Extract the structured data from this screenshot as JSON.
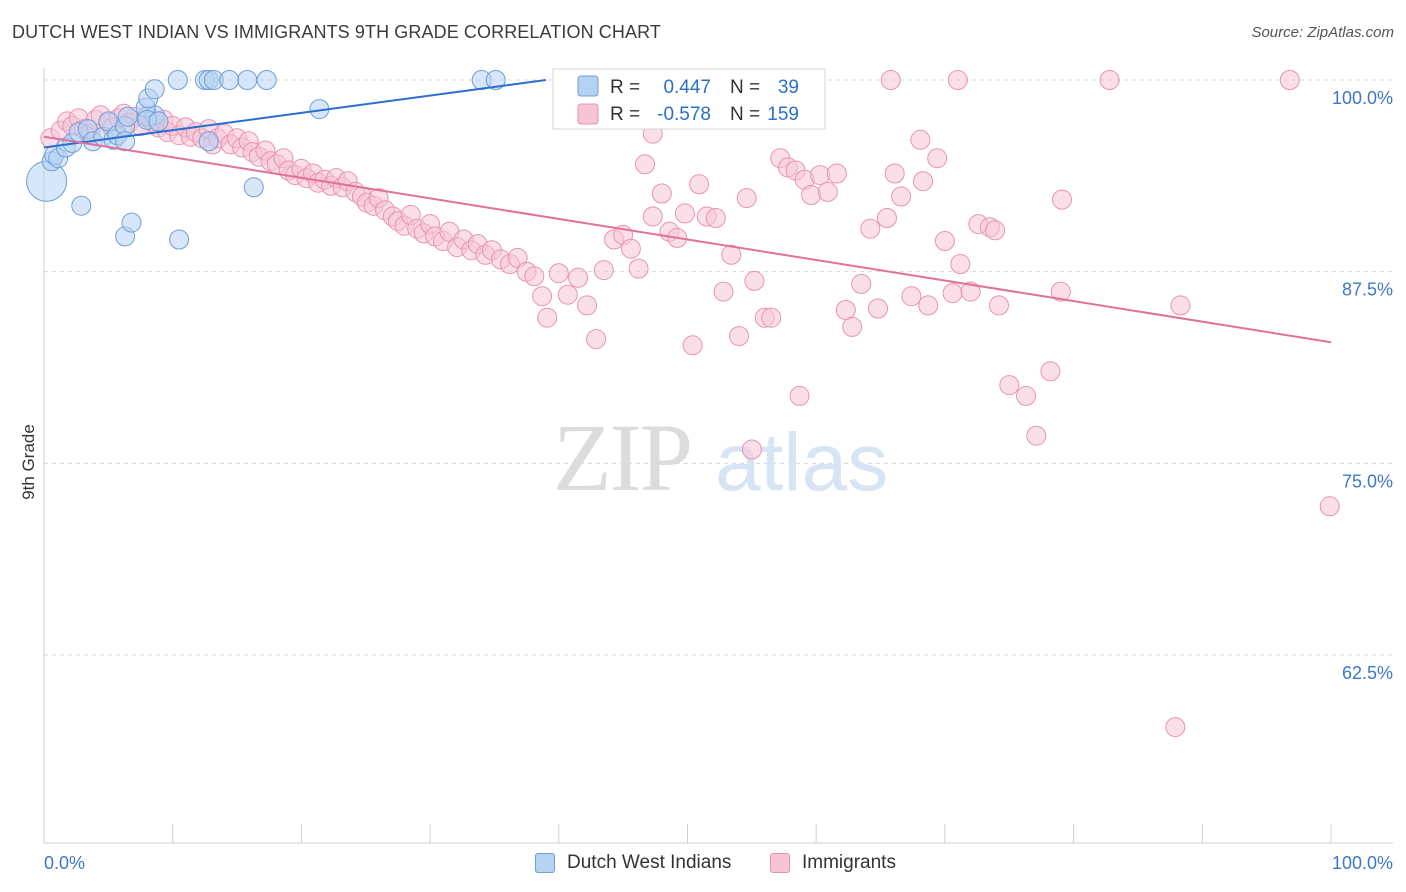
{
  "title": "DUTCH WEST INDIAN VS IMMIGRANTS 9TH GRADE CORRELATION CHART",
  "source": "Source: ZipAtlas.com",
  "watermark": {
    "zip": "ZIP",
    "atlas": "atlas"
  },
  "colors": {
    "blue_fill": "#b6d2f2",
    "blue_stroke": "#6d9fd8",
    "blue_line": "#2a6fcf",
    "pink_fill": "#f6c4d5",
    "pink_stroke": "#e993b3",
    "pink_line": "#e2709c",
    "tick_label": "#3d78c8",
    "grid": "#d8d8d8"
  },
  "legend": {
    "rows": [
      {
        "r_label": "R =",
        "r_value": "0.447",
        "n_label": "N =",
        "n_value": "39"
      },
      {
        "r_label": "R =",
        "r_value": "-0.578",
        "n_label": "N =",
        "n_value": "159"
      }
    ]
  },
  "bottom_legend": {
    "series1": "Dutch West Indians",
    "series2": "Immigrants"
  },
  "chart_data": {
    "type": "scatter",
    "title": "DUTCH WEST INDIAN VS IMMIGRANTS 9TH GRADE CORRELATION CHART",
    "xlabel": "",
    "ylabel": "9th Grade",
    "xlim": [
      0,
      100
    ],
    "ylim": [
      50,
      101
    ],
    "x_tick_labels": [
      "0.0%",
      "100.0%"
    ],
    "y_ticks": [
      100,
      87.5,
      75,
      62.5
    ],
    "y_tick_labels": [
      "100.0%",
      "87.5%",
      "75.0%",
      "62.5%"
    ],
    "grid": true,
    "legend_position": "top-center",
    "series": [
      {
        "name": "Dutch West Indians",
        "r": 0.447,
        "n": 39,
        "trend": {
          "x": [
            0,
            39
          ],
          "y": [
            95.6,
            100.0
          ]
        },
        "points": [
          [
            0.2,
            93.4
          ],
          [
            0.6,
            94.7
          ],
          [
            0.8,
            95.1
          ],
          [
            1.1,
            94.9
          ],
          [
            1.7,
            95.6
          ],
          [
            2.2,
            95.9
          ],
          [
            2.7,
            96.6
          ],
          [
            3.4,
            96.8
          ],
          [
            3.8,
            96.0
          ],
          [
            4.6,
            96.3
          ],
          [
            5.0,
            97.3
          ],
          [
            5.4,
            96.1
          ],
          [
            5.7,
            96.4
          ],
          [
            6.3,
            97.0
          ],
          [
            6.5,
            97.6
          ],
          [
            6.3,
            96.0
          ],
          [
            8.0,
            97.6
          ],
          [
            8.6,
            97.7
          ],
          [
            7.9,
            98.2
          ],
          [
            8.0,
            97.4
          ],
          [
            8.9,
            97.3
          ],
          [
            8.1,
            98.8
          ],
          [
            8.6,
            99.4
          ],
          [
            10.4,
            100.0
          ],
          [
            12.5,
            100.0
          ],
          [
            12.8,
            100.0
          ],
          [
            13.2,
            100.0
          ],
          [
            14.4,
            100.0
          ],
          [
            15.8,
            100.0
          ],
          [
            17.3,
            100.0
          ],
          [
            16.3,
            93.0
          ],
          [
            2.9,
            91.8
          ],
          [
            6.3,
            89.8
          ],
          [
            6.8,
            90.7
          ],
          [
            10.5,
            89.6
          ],
          [
            12.8,
            96.0
          ],
          [
            21.4,
            98.1
          ],
          [
            34.0,
            100.0
          ],
          [
            35.1,
            100.0
          ]
        ]
      },
      {
        "name": "Immigrants",
        "r": -0.578,
        "n": 159,
        "trend": {
          "x": [
            0,
            100
          ],
          "y": [
            96.3,
            82.9
          ]
        },
        "points": [
          [
            0.5,
            96.2
          ],
          [
            1.3,
            96.7
          ],
          [
            1.8,
            97.3
          ],
          [
            2.2,
            97.0
          ],
          [
            2.7,
            97.5
          ],
          [
            3.1,
            96.8
          ],
          [
            3.6,
            96.5
          ],
          [
            4.0,
            97.4
          ],
          [
            4.4,
            97.7
          ],
          [
            5.0,
            97.2
          ],
          [
            5.3,
            96.9
          ],
          [
            5.8,
            97.5
          ],
          [
            6.2,
            97.8
          ],
          [
            6.6,
            97.2
          ],
          [
            7.1,
            97.6
          ],
          [
            7.5,
            97.0
          ],
          [
            8.1,
            97.7
          ],
          [
            8.4,
            97.3
          ],
          [
            8.9,
            96.9
          ],
          [
            9.3,
            97.4
          ],
          [
            9.6,
            96.6
          ],
          [
            10.0,
            97.0
          ],
          [
            10.5,
            96.4
          ],
          [
            11.0,
            96.9
          ],
          [
            11.4,
            96.3
          ],
          [
            11.8,
            96.6
          ],
          [
            12.3,
            96.2
          ],
          [
            12.8,
            96.8
          ],
          [
            13.1,
            95.8
          ],
          [
            13.5,
            96.2
          ],
          [
            14.0,
            96.5
          ],
          [
            14.5,
            95.8
          ],
          [
            15.0,
            96.2
          ],
          [
            15.4,
            95.6
          ],
          [
            15.9,
            96.0
          ],
          [
            16.2,
            95.3
          ],
          [
            16.7,
            95.0
          ],
          [
            17.2,
            95.4
          ],
          [
            17.6,
            94.7
          ],
          [
            18.1,
            94.5
          ],
          [
            18.6,
            94.9
          ],
          [
            19.0,
            94.1
          ],
          [
            19.5,
            93.8
          ],
          [
            20.0,
            94.2
          ],
          [
            20.4,
            93.6
          ],
          [
            20.9,
            93.9
          ],
          [
            21.3,
            93.3
          ],
          [
            21.8,
            93.5
          ],
          [
            22.3,
            93.1
          ],
          [
            22.7,
            93.6
          ],
          [
            23.2,
            93.0
          ],
          [
            23.6,
            93.4
          ],
          [
            24.2,
            92.7
          ],
          [
            24.7,
            92.4
          ],
          [
            25.1,
            92.0
          ],
          [
            25.6,
            91.8
          ],
          [
            26.0,
            92.3
          ],
          [
            26.5,
            91.5
          ],
          [
            27.1,
            91.1
          ],
          [
            27.5,
            90.8
          ],
          [
            28.0,
            90.5
          ],
          [
            28.5,
            91.2
          ],
          [
            29.0,
            90.3
          ],
          [
            29.5,
            90.0
          ],
          [
            30.0,
            90.6
          ],
          [
            30.4,
            89.8
          ],
          [
            31.0,
            89.5
          ],
          [
            31.5,
            90.1
          ],
          [
            32.1,
            89.1
          ],
          [
            32.6,
            89.6
          ],
          [
            33.2,
            88.9
          ],
          [
            33.7,
            89.3
          ],
          [
            34.3,
            88.6
          ],
          [
            34.8,
            88.9
          ],
          [
            35.5,
            88.3
          ],
          [
            36.2,
            88.0
          ],
          [
            36.8,
            88.4
          ],
          [
            37.5,
            87.5
          ],
          [
            38.1,
            87.2
          ],
          [
            38.7,
            85.9
          ],
          [
            39.1,
            84.5
          ],
          [
            40.0,
            87.4
          ],
          [
            40.7,
            86.0
          ],
          [
            41.5,
            87.1
          ],
          [
            42.2,
            85.3
          ],
          [
            42.9,
            83.1
          ],
          [
            43.5,
            87.6
          ],
          [
            44.3,
            89.6
          ],
          [
            45.0,
            89.9
          ],
          [
            45.6,
            89.0
          ],
          [
            46.2,
            87.7
          ],
          [
            46.7,
            94.5
          ],
          [
            47.3,
            91.1
          ],
          [
            48.0,
            92.6
          ],
          [
            48.6,
            90.1
          ],
          [
            49.2,
            89.7
          ],
          [
            49.8,
            91.3
          ],
          [
            50.4,
            82.7
          ],
          [
            50.9,
            93.2
          ],
          [
            51.5,
            91.1
          ],
          [
            52.2,
            91.0
          ],
          [
            52.8,
            86.2
          ],
          [
            53.4,
            88.6
          ],
          [
            54.0,
            83.3
          ],
          [
            54.6,
            92.3
          ],
          [
            55.2,
            86.9
          ],
          [
            56.0,
            84.5
          ],
          [
            56.5,
            84.5
          ],
          [
            57.2,
            94.9
          ],
          [
            57.8,
            94.3
          ],
          [
            58.4,
            94.1
          ],
          [
            59.1,
            93.5
          ],
          [
            59.6,
            92.5
          ],
          [
            60.3,
            93.8
          ],
          [
            60.9,
            92.7
          ],
          [
            61.6,
            93.9
          ],
          [
            62.3,
            85.0
          ],
          [
            62.8,
            83.9
          ],
          [
            63.5,
            86.7
          ],
          [
            64.2,
            90.3
          ],
          [
            64.8,
            85.1
          ],
          [
            65.5,
            91.0
          ],
          [
            66.1,
            93.9
          ],
          [
            66.6,
            92.4
          ],
          [
            67.4,
            85.9
          ],
          [
            68.1,
            96.1
          ],
          [
            68.7,
            85.3
          ],
          [
            69.4,
            94.9
          ],
          [
            70.0,
            89.5
          ],
          [
            70.6,
            86.1
          ],
          [
            71.2,
            88.0
          ],
          [
            72.0,
            86.2
          ],
          [
            72.6,
            90.6
          ],
          [
            73.5,
            90.4
          ],
          [
            74.2,
            85.3
          ],
          [
            75.0,
            80.1
          ],
          [
            76.3,
            79.4
          ],
          [
            77.1,
            76.8
          ],
          [
            78.2,
            81.0
          ],
          [
            79.0,
            86.2
          ],
          [
            65.8,
            100.0
          ],
          [
            71.0,
            100.0
          ],
          [
            82.8,
            100.0
          ],
          [
            96.8,
            100.0
          ],
          [
            79.1,
            92.2
          ],
          [
            88.3,
            85.3
          ],
          [
            87.9,
            57.8
          ],
          [
            99.9,
            72.2
          ],
          [
            55.0,
            75.9
          ],
          [
            58.7,
            79.4
          ],
          [
            47.3,
            96.5
          ],
          [
            68.3,
            93.4
          ],
          [
            73.9,
            90.2
          ]
        ]
      }
    ]
  }
}
